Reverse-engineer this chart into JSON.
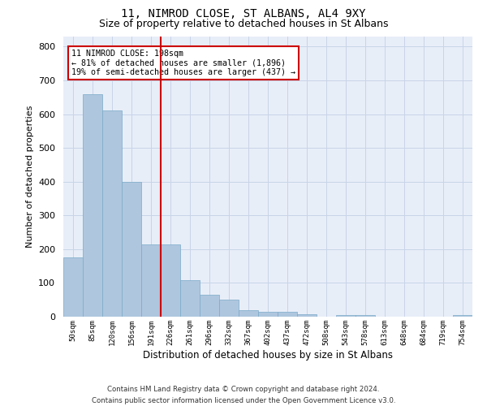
{
  "title": "11, NIMROD CLOSE, ST ALBANS, AL4 9XY",
  "subtitle": "Size of property relative to detached houses in St Albans",
  "xlabel": "Distribution of detached houses by size in St Albans",
  "ylabel": "Number of detached properties",
  "categories": [
    "50sqm",
    "85sqm",
    "120sqm",
    "156sqm",
    "191sqm",
    "226sqm",
    "261sqm",
    "296sqm",
    "332sqm",
    "367sqm",
    "402sqm",
    "437sqm",
    "472sqm",
    "508sqm",
    "543sqm",
    "578sqm",
    "613sqm",
    "648sqm",
    "684sqm",
    "719sqm",
    "754sqm"
  ],
  "values": [
    175,
    660,
    610,
    400,
    215,
    215,
    108,
    65,
    50,
    20,
    15,
    14,
    8,
    0,
    6,
    5,
    0,
    0,
    0,
    0,
    5
  ],
  "bar_color": "#aec6de",
  "bar_edge_color": "#7aaac8",
  "vline_x_index": 4.5,
  "annotation_text": "11 NIMROD CLOSE: 198sqm\n← 81% of detached houses are smaller (1,896)\n19% of semi-detached houses are larger (437) →",
  "annotation_box_color": "#ffffff",
  "annotation_box_edge": "#cc0000",
  "vline_color": "#cc0000",
  "ylim": [
    0,
    830
  ],
  "yticks": [
    0,
    100,
    200,
    300,
    400,
    500,
    600,
    700,
    800
  ],
  "grid_color": "#c8d4e8",
  "background_color": "#e8eef8",
  "footer_line1": "Contains HM Land Registry data © Crown copyright and database right 2024.",
  "footer_line2": "Contains public sector information licensed under the Open Government Licence v3.0.",
  "title_fontsize": 10,
  "subtitle_fontsize": 9,
  "ylabel_text": "Number of detached properties",
  "figwidth": 6.0,
  "figheight": 5.0
}
